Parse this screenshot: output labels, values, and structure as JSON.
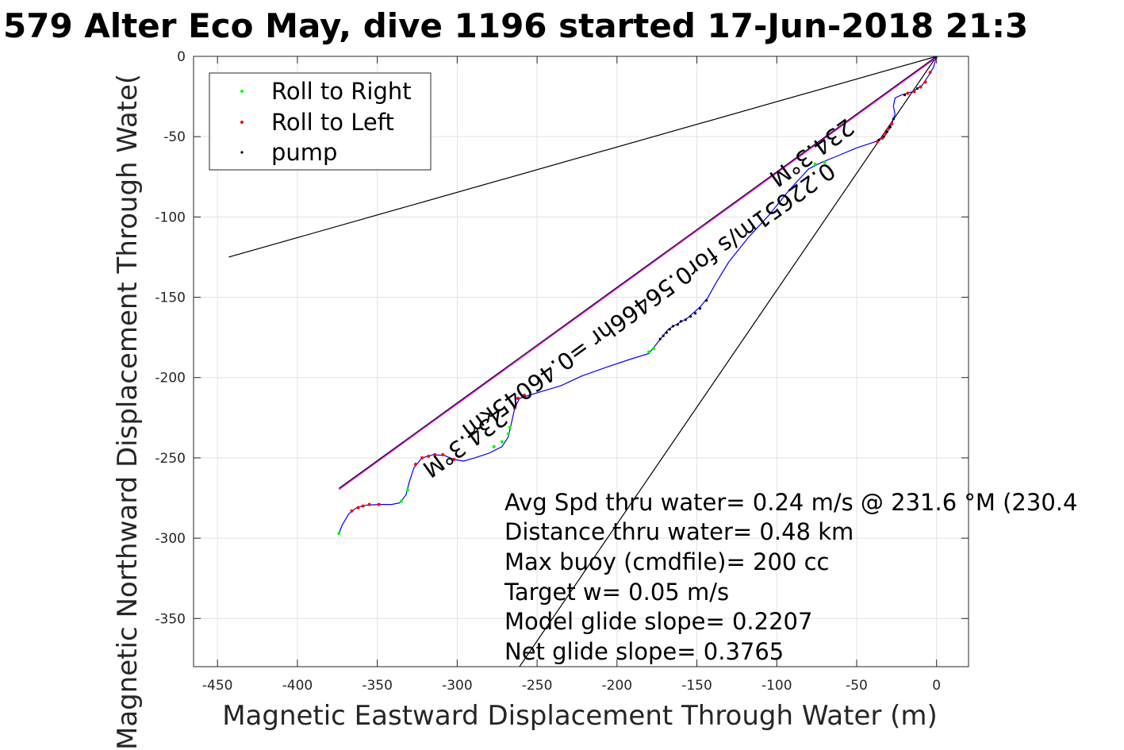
{
  "chart_data": {
    "type": "line",
    "title": "579 Alter Eco May, dive 1196 started 17-Jun-2018 21:3",
    "xlabel": "Magnetic Eastward Displacement Through Water (m)",
    "ylabel": "Magnetic Northward Displacement Through Wate(",
    "xlim": [
      -465,
      20
    ],
    "ylim": [
      -380,
      0
    ],
    "xticks": [
      -450,
      -400,
      -350,
      -300,
      -250,
      -200,
      -150,
      -100,
      -50,
      0
    ],
    "yticks": [
      0,
      -50,
      -100,
      -150,
      -200,
      -250,
      -300,
      -350
    ],
    "grid": true,
    "legend": {
      "placement": "top-left",
      "entries": [
        {
          "label": "Roll to Right",
          "color": "#00ff00"
        },
        {
          "label": "Roll to Left",
          "color": "#ff0000"
        },
        {
          "label": "pump",
          "color": "#000000"
        }
      ]
    },
    "track": {
      "color": "#0000ff",
      "points": [
        [
          -374,
          -297
        ],
        [
          -372,
          -292
        ],
        [
          -368,
          -285
        ],
        [
          -363,
          -281
        ],
        [
          -357,
          -279.5
        ],
        [
          -349,
          -279
        ],
        [
          -341,
          -279
        ],
        [
          -336,
          -278
        ],
        [
          -332,
          -273
        ],
        [
          -330,
          -265
        ],
        [
          -327,
          -256
        ],
        [
          -322,
          -250
        ],
        [
          -315,
          -248
        ],
        [
          -308,
          -248.5
        ],
        [
          -302,
          -251
        ],
        [
          -296,
          -252
        ],
        [
          -289,
          -250
        ],
        [
          -280,
          -247
        ],
        [
          -272,
          -243
        ],
        [
          -268,
          -237
        ],
        [
          -266,
          -228
        ],
        [
          -264,
          -219
        ],
        [
          -261,
          -213
        ],
        [
          -255,
          -211
        ],
        [
          -245,
          -208
        ],
        [
          -235,
          -205
        ],
        [
          -222,
          -199
        ],
        [
          -205,
          -193
        ],
        [
          -190,
          -188
        ],
        [
          -180,
          -185
        ],
        [
          -176,
          -180
        ],
        [
          -172,
          -175
        ],
        [
          -168,
          -170
        ],
        [
          -163,
          -167
        ],
        [
          -156,
          -163
        ],
        [
          -148,
          -156
        ],
        [
          -143,
          -150
        ],
        [
          -138,
          -141
        ],
        [
          -130,
          -128
        ],
        [
          -118,
          -113
        ],
        [
          -105,
          -99
        ],
        [
          -92,
          -83
        ],
        [
          -80,
          -70
        ],
        [
          -72,
          -66
        ],
        [
          -62,
          -62
        ],
        [
          -50,
          -57
        ],
        [
          -38,
          -53
        ],
        [
          -32,
          -49
        ],
        [
          -28,
          -42
        ],
        [
          -26,
          -36
        ],
        [
          -27,
          -31
        ],
        [
          -26,
          -26
        ],
        [
          -22,
          -24
        ],
        [
          -15,
          -22
        ],
        [
          -9,
          -18
        ],
        [
          -5,
          -12
        ],
        [
          -2,
          -7
        ],
        [
          0,
          0
        ]
      ]
    },
    "markers": {
      "roll_right": [
        [
          -374,
          -297
        ],
        [
          -335,
          -277
        ],
        [
          -331,
          -270
        ],
        [
          -277,
          -243
        ],
        [
          -272,
          -240
        ],
        [
          -268,
          -235
        ],
        [
          -267,
          -231
        ],
        [
          -180,
          -184
        ],
        [
          -177,
          -182
        ],
        [
          -76,
          -67
        ],
        [
          -70,
          -66
        ]
      ],
      "roll_left": [
        [
          -366,
          -283
        ],
        [
          -362,
          -281
        ],
        [
          -359,
          -280
        ],
        [
          -355,
          -279
        ],
        [
          -349,
          -279
        ],
        [
          -326,
          -254
        ],
        [
          -322,
          -250
        ],
        [
          -318,
          -249
        ],
        [
          -314,
          -248
        ],
        [
          -309,
          -248
        ],
        [
          -302,
          -251
        ],
        [
          -264,
          -219
        ],
        [
          -262,
          -213
        ],
        [
          -258,
          -211
        ],
        [
          -37,
          -53
        ],
        [
          -34,
          -51
        ],
        [
          -32,
          -48
        ],
        [
          -30,
          -45
        ],
        [
          -28,
          -42
        ],
        [
          -18,
          -23
        ],
        [
          -14,
          -22
        ],
        [
          -10,
          -19
        ],
        [
          -7,
          -16
        ],
        [
          -4,
          -10
        ]
      ],
      "pump": [
        [
          -173,
          -176
        ],
        [
          -171,
          -174
        ],
        [
          -169,
          -172
        ],
        [
          -167,
          -170
        ],
        [
          -165,
          -168
        ],
        [
          -162,
          -167
        ],
        [
          -160,
          -165
        ],
        [
          -157,
          -164
        ],
        [
          -154,
          -162
        ],
        [
          -151,
          -160
        ],
        [
          -148,
          -157
        ],
        [
          -144,
          -152
        ],
        [
          -36,
          -52
        ],
        [
          -33,
          -50
        ],
        [
          -31,
          -47
        ],
        [
          -29,
          -44
        ],
        [
          -27,
          -39
        ],
        [
          -20,
          -24
        ],
        [
          -12,
          -20
        ],
        [
          0,
          0
        ]
      ]
    },
    "heading_line": {
      "color": "#ff00ff",
      "from": [
        -374,
        -269
      ],
      "to": [
        0,
        0
      ]
    },
    "reference_lines": [
      {
        "color": "#000000",
        "from": [
          -443,
          -125
        ],
        "to": [
          0,
          0
        ]
      },
      {
        "color": "#000000",
        "from": [
          -261,
          -380
        ],
        "to": [
          0,
          0
        ]
      }
    ],
    "annotations": [
      {
        "text": "234.3°M",
        "x": -298,
        "y": -237
      },
      {
        "text": "0.22651m/s for0.56466hr =0.46045km",
        "x": -183,
        "y": -148
      },
      {
        "text": "234.3°M",
        "x": -81,
        "y": -56
      }
    ],
    "stats_lines": [
      "Avg Spd thru water=  0.24 m/s @ 231.6 °M (230.4",
      "Distance thru water=  0.48 km",
      "Max buoy (cmdfile)= 200 cc",
      "Target w= 0.05 m/s",
      "Model glide slope= 0.2207",
      "Net glide slope= 0.3765"
    ]
  }
}
